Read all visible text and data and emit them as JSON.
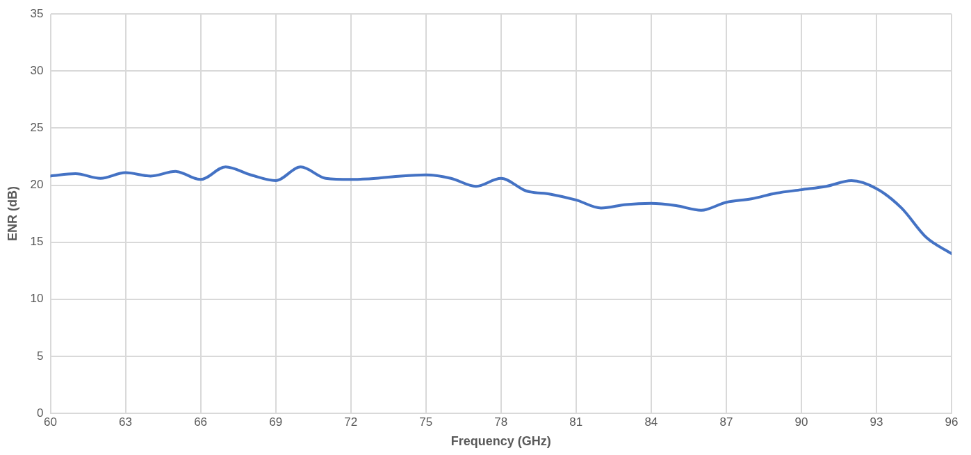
{
  "chart_data": {
    "type": "line",
    "xlabel": "Frequency (GHz)",
    "ylabel": "ENR (dB)",
    "x": [
      60,
      61,
      62,
      63,
      64,
      65,
      66,
      67,
      68,
      69,
      70,
      71,
      72,
      73,
      74,
      75,
      76,
      77,
      78,
      79,
      80,
      81,
      82,
      83,
      84,
      85,
      86,
      87,
      88,
      89,
      90,
      91,
      92,
      93,
      94,
      95,
      96
    ],
    "series": [
      {
        "color": "#4472c4",
        "values": [
          20.8,
          21.0,
          20.6,
          21.1,
          20.8,
          21.2,
          20.5,
          21.6,
          20.9,
          20.4,
          21.6,
          20.6,
          20.5,
          20.6,
          20.8,
          20.9,
          20.6,
          19.9,
          20.6,
          19.5,
          19.2,
          18.7,
          18.0,
          18.3,
          18.4,
          18.2,
          17.8,
          18.5,
          18.8,
          19.3,
          19.6,
          19.9,
          20.4,
          19.7,
          18.0,
          15.4,
          14.0
        ]
      }
    ],
    "xlim": [
      60,
      96
    ],
    "xticks": [
      60,
      63,
      66,
      69,
      72,
      75,
      78,
      81,
      84,
      87,
      90,
      93,
      96
    ],
    "ylim": [
      0,
      35
    ],
    "yticks": [
      0,
      5,
      10,
      15,
      20,
      25,
      30,
      35
    ],
    "grid": true,
    "legend": false,
    "marker": "none",
    "line_style": "solid"
  }
}
